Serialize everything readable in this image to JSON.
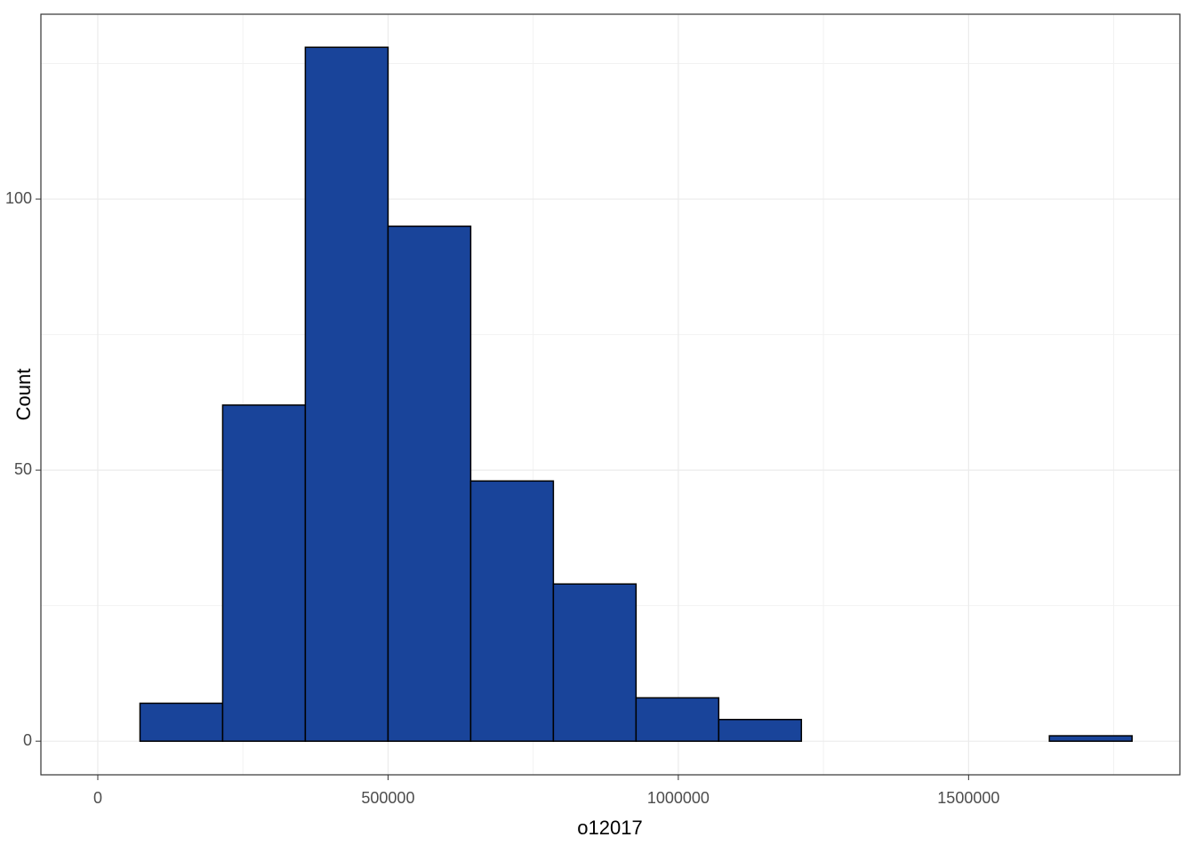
{
  "chart_data": {
    "type": "histogram",
    "bins": [
      72700,
      215100,
      357500,
      500000,
      642400,
      784800,
      927200,
      1069600,
      1212000,
      1354400,
      1496800,
      1639200,
      1781600
    ],
    "values": [
      7,
      62,
      128,
      95,
      48,
      29,
      8,
      4,
      0,
      0,
      0,
      1
    ],
    "color": "#19449a",
    "edgecolor": "#000000",
    "xlabel": "o12017",
    "ylabel": "Count",
    "xlim": [
      -98000,
      1864000
    ],
    "ylim": [
      -6.2,
      134.1
    ],
    "xticks": [
      0,
      500000,
      1000000,
      1500000
    ],
    "yticks": [
      0,
      50,
      100
    ],
    "minor_xticks": [
      250000,
      750000,
      1250000,
      1750000
    ],
    "minor_yticks": [
      25,
      75,
      125
    ],
    "grid": true
  }
}
